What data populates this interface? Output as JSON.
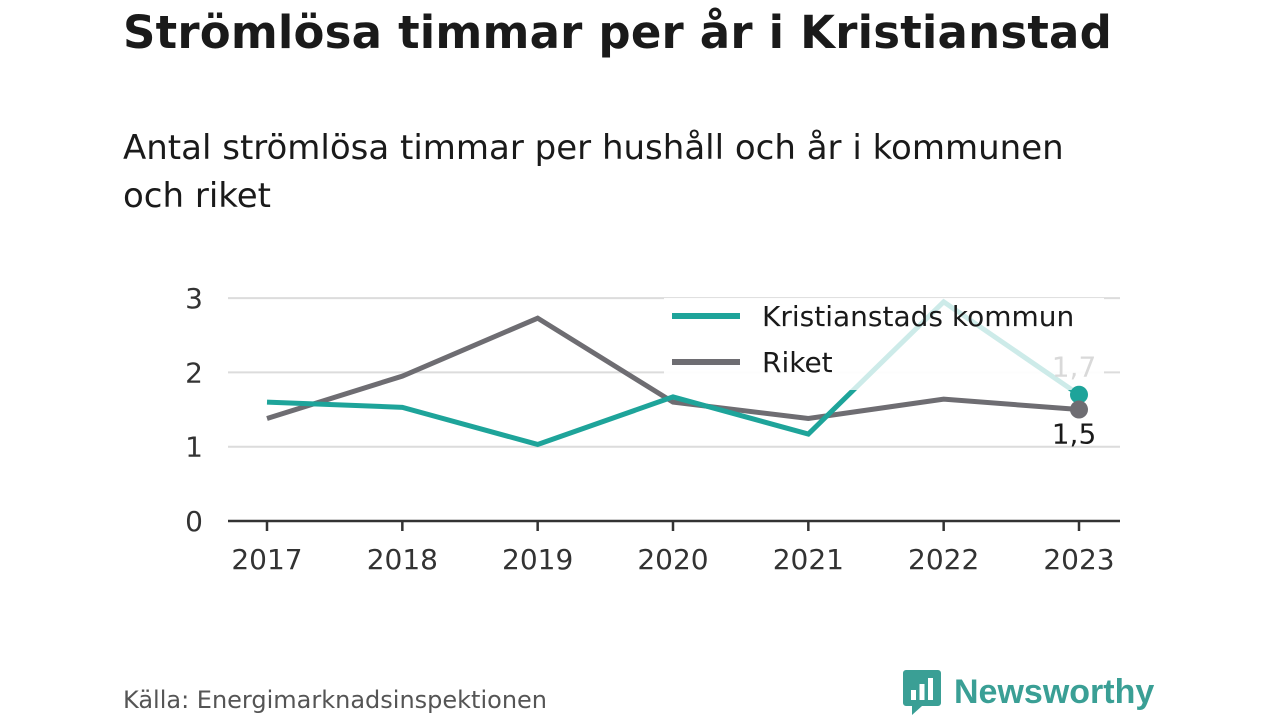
{
  "header": {
    "title": "Strömlösa timmar per år i Kristianstad",
    "subtitle": "Antal strömlösa timmar per hushåll och år i kommunen och riket"
  },
  "chart_data": {
    "type": "line",
    "x": [
      "2017",
      "2018",
      "2019",
      "2020",
      "2021",
      "2022",
      "2023"
    ],
    "ylim": [
      0,
      3
    ],
    "yticks": [
      "0",
      "1",
      "2",
      "3"
    ],
    "grid": true,
    "legend_position": "top-right",
    "series": [
      {
        "name": "Kristianstads kommun",
        "color": "#1ea49a",
        "values": [
          1.6,
          1.53,
          1.03,
          1.67,
          1.17,
          2.95,
          1.7
        ],
        "end_label": "1,7"
      },
      {
        "name": "Riket",
        "color": "#6e6d72",
        "values": [
          1.38,
          1.95,
          2.73,
          1.6,
          1.38,
          1.64,
          1.5
        ],
        "end_label": "1,5"
      }
    ]
  },
  "footer": {
    "source": "Källa: Energimarknadsinspektionen",
    "brand": "Newsworthy",
    "brand_color": "#3a9f95"
  }
}
